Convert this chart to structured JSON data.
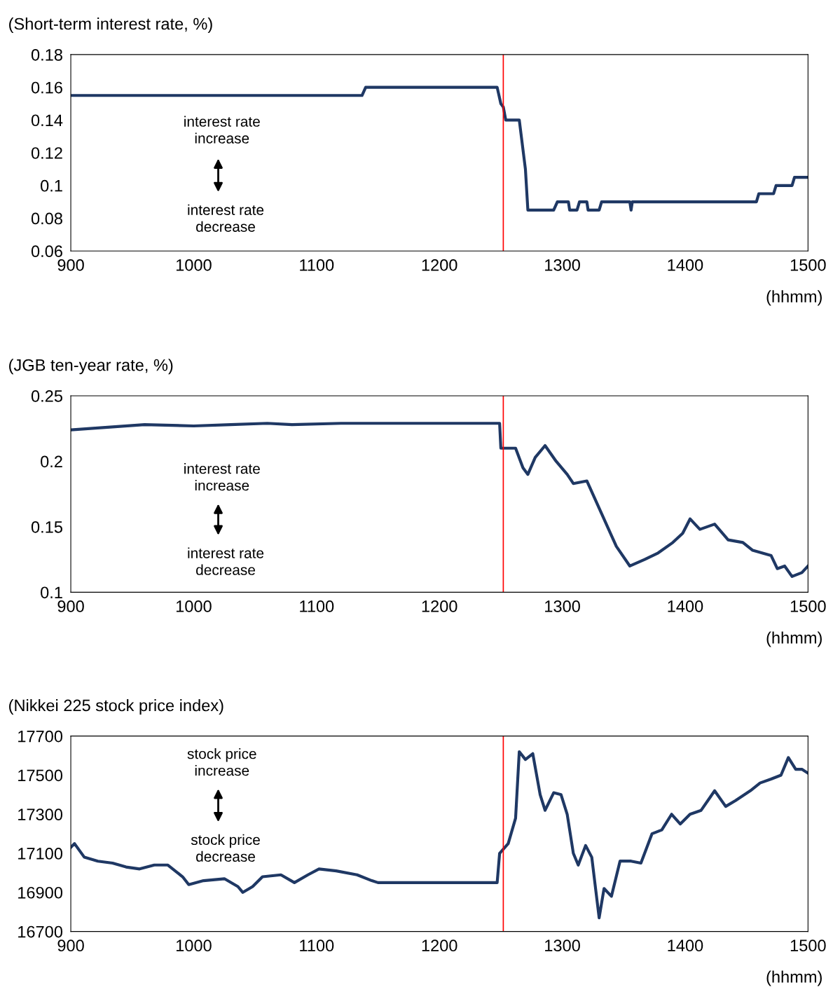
{
  "chart_data": [
    {
      "type": "line",
      "ylabel": "(Short-term interest rate, %)",
      "xlabel": "(hhmm)",
      "annotations": [
        "interest rate\nincrease",
        "interest rate\ndecrease"
      ],
      "grid": false,
      "legend": false,
      "marker": "none",
      "line_style": "solid",
      "xlim": [
        900,
        1500
      ],
      "xticks": [
        900,
        1000,
        1100,
        1200,
        1300,
        1400,
        1500
      ],
      "ylim": [
        0.06,
        0.18
      ],
      "yticks": [
        0.06,
        0.08,
        0.1,
        0.12,
        0.14,
        0.16,
        0.18
      ],
      "ref_lines": [
        {
          "axis": "x",
          "value": 1252,
          "color": "#ff0000"
        }
      ],
      "series": [
        {
          "color": "#1f3864",
          "x": [
            900,
            1137,
            1140,
            1247,
            1250,
            1252,
            1254,
            1265,
            1270,
            1272,
            1293,
            1296,
            1305,
            1306,
            1312,
            1314,
            1320,
            1321,
            1330,
            1332,
            1355,
            1356,
            1357,
            1458,
            1460,
            1472,
            1474,
            1487,
            1489,
            1500
          ],
          "values": [
            0.155,
            0.155,
            0.16,
            0.16,
            0.15,
            0.148,
            0.14,
            0.14,
            0.11,
            0.085,
            0.085,
            0.09,
            0.09,
            0.085,
            0.085,
            0.09,
            0.09,
            0.085,
            0.085,
            0.09,
            0.09,
            0.085,
            0.09,
            0.09,
            0.095,
            0.095,
            0.1,
            0.1,
            0.105,
            0.105
          ]
        }
      ]
    },
    {
      "type": "line",
      "ylabel": "(JGB ten-year rate, %)",
      "xlabel": "(hhmm)",
      "annotations": [
        "interest rate\nincrease",
        "interest rate\ndecrease"
      ],
      "grid": false,
      "legend": false,
      "marker": "none",
      "line_style": "solid",
      "xlim": [
        900,
        1500
      ],
      "xticks": [
        900,
        1000,
        1100,
        1200,
        1300,
        1400,
        1500
      ],
      "ylim": [
        0.1,
        0.25
      ],
      "yticks": [
        0.1,
        0.15,
        0.2,
        0.25
      ],
      "ref_lines": [
        {
          "axis": "x",
          "value": 1252,
          "color": "#ff0000"
        }
      ],
      "series": [
        {
          "color": "#1f3864",
          "x": [
            900,
            930,
            960,
            1000,
            1030,
            1060,
            1080,
            1120,
            1200,
            1249,
            1250,
            1262,
            1268,
            1272,
            1278,
            1286,
            1295,
            1304,
            1309,
            1320,
            1332,
            1344,
            1355,
            1367,
            1378,
            1390,
            1398,
            1404,
            1412,
            1424,
            1435,
            1447,
            1455,
            1470,
            1475,
            1481,
            1487,
            1495,
            1500
          ],
          "values": [
            0.224,
            0.226,
            0.228,
            0.227,
            0.228,
            0.229,
            0.228,
            0.229,
            0.229,
            0.229,
            0.21,
            0.21,
            0.195,
            0.19,
            0.203,
            0.212,
            0.2,
            0.19,
            0.183,
            0.185,
            0.16,
            0.135,
            0.12,
            0.125,
            0.13,
            0.138,
            0.145,
            0.156,
            0.148,
            0.152,
            0.14,
            0.138,
            0.132,
            0.128,
            0.118,
            0.12,
            0.112,
            0.115,
            0.12
          ]
        }
      ]
    },
    {
      "type": "line",
      "ylabel": "(Nikkei 225 stock price index)",
      "xlabel": "(hhmm)",
      "annotations": [
        "stock price\nincrease",
        "stock price\ndecrease"
      ],
      "grid": false,
      "legend": false,
      "marker": "none",
      "line_style": "solid",
      "xlim": [
        900,
        1500
      ],
      "xticks": [
        900,
        1000,
        1100,
        1200,
        1300,
        1400,
        1500
      ],
      "ylim": [
        16700,
        17700
      ],
      "yticks": [
        16700,
        16900,
        17100,
        17300,
        17500,
        17700
      ],
      "ref_lines": [
        {
          "axis": "x",
          "value": 1252,
          "color": "#ff0000"
        }
      ],
      "series": [
        {
          "color": "#1f3864",
          "x": [
            900,
            903,
            911,
            922,
            934,
            945,
            956,
            968,
            979,
            991,
            996,
            1008,
            1025,
            1036,
            1040,
            1048,
            1056,
            1071,
            1082,
            1093,
            1102,
            1116,
            1133,
            1145,
            1150,
            1242,
            1247,
            1249,
            1256,
            1262,
            1265,
            1270,
            1276,
            1282,
            1286,
            1293,
            1299,
            1304,
            1309,
            1313,
            1319,
            1324,
            1330,
            1334,
            1340,
            1347,
            1356,
            1364,
            1373,
            1381,
            1389,
            1396,
            1404,
            1413,
            1424,
            1433,
            1441,
            1453,
            1461,
            1470,
            1478,
            1484,
            1490,
            1495,
            1500
          ],
          "values": [
            17130,
            17150,
            17080,
            17060,
            17050,
            17030,
            17020,
            17040,
            17040,
            16980,
            16940,
            16960,
            16970,
            16930,
            16900,
            16930,
            16980,
            16990,
            16950,
            16990,
            17020,
            17010,
            16990,
            16960,
            16950,
            16950,
            16950,
            17100,
            17150,
            17280,
            17620,
            17580,
            17610,
            17400,
            17320,
            17410,
            17400,
            17300,
            17100,
            17040,
            17140,
            17080,
            16770,
            16920,
            16880,
            17060,
            17060,
            17050,
            17200,
            17220,
            17300,
            17250,
            17300,
            17320,
            17420,
            17340,
            17370,
            17420,
            17460,
            17480,
            17500,
            17590,
            17530,
            17530,
            17510
          ]
        }
      ]
    }
  ]
}
